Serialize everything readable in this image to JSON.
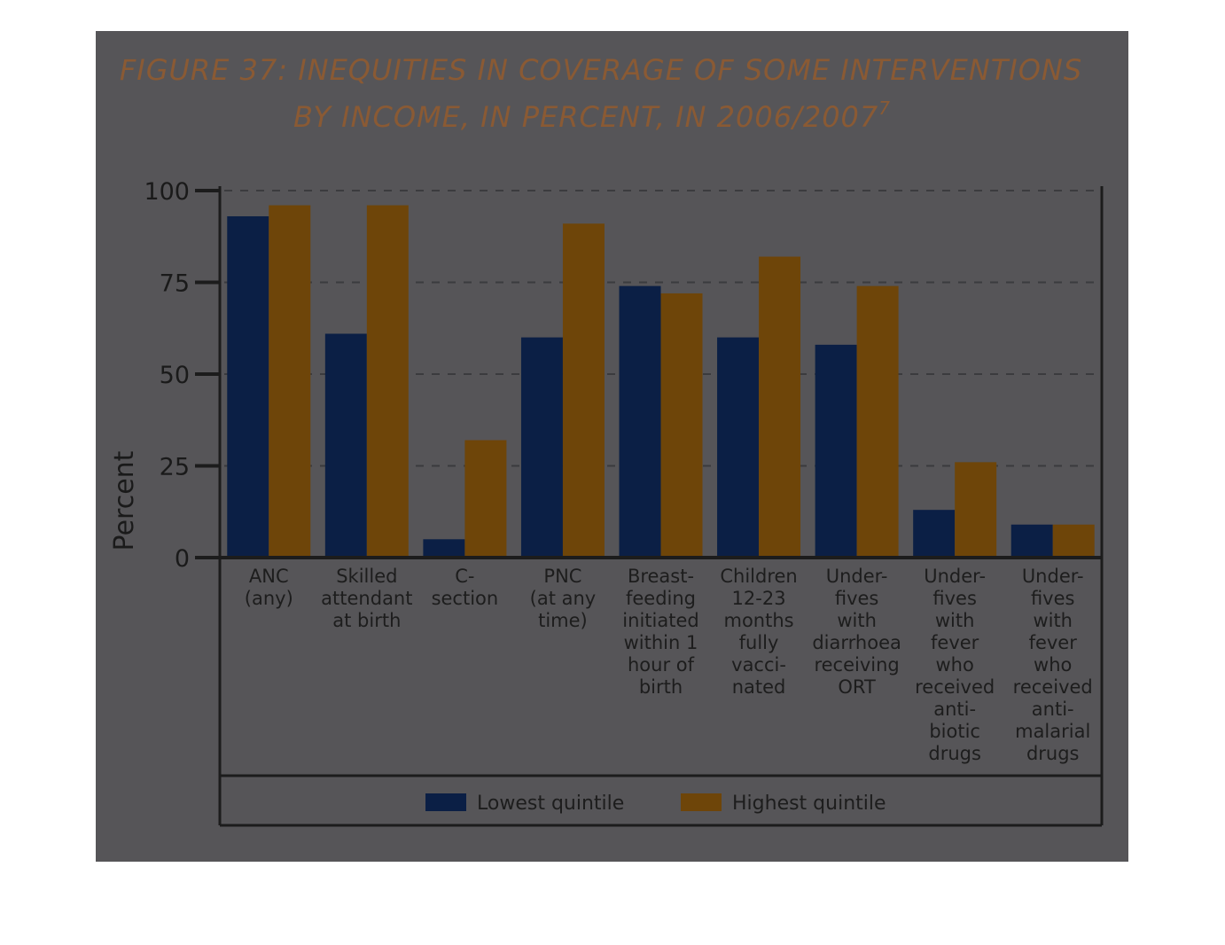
{
  "figure": {
    "title_line1": "FIGURE 37: INEQUITIES IN COVERAGE OF SOME INTERVENTIONS",
    "title_line2": "BY INCOME, IN PERCENT, IN 2006/2007",
    "title_superscript": "7"
  },
  "colors": {
    "lowest": "#0b1f45",
    "highest": "#6e4509",
    "panel": "#565558",
    "axis": "#1c1c1c",
    "title": "#8a5a34"
  },
  "chart_data": {
    "type": "bar",
    "ylabel": "Percent",
    "ylim": [
      0,
      100
    ],
    "yticks": [
      "0",
      "25",
      "50",
      "75",
      "100"
    ],
    "grid": true,
    "legend_position": "bottom",
    "categories": [
      [
        "ANC",
        "(any)"
      ],
      [
        "Skilled",
        "attendant",
        "at birth"
      ],
      [
        "C-",
        "section"
      ],
      [
        "PNC",
        "(at any",
        "time)"
      ],
      [
        "Breast-",
        "feeding",
        "initiated",
        "within 1",
        "hour of",
        "birth"
      ],
      [
        "Children",
        "12-23",
        "months",
        "fully",
        "vacci-",
        "nated"
      ],
      [
        "Under-",
        "fives",
        "with",
        "diarrhoea",
        "receiving",
        "ORT"
      ],
      [
        "Under-",
        "fives",
        "with",
        "fever",
        "who",
        "received",
        "anti-",
        "biotic",
        "drugs"
      ],
      [
        "Under-",
        "fives",
        "with",
        "fever",
        "who",
        "received",
        "anti-",
        "malarial",
        "drugs"
      ]
    ],
    "series": [
      {
        "name": "Lowest quintile",
        "values": [
          93,
          61,
          5,
          60,
          74,
          60,
          58,
          13,
          9
        ]
      },
      {
        "name": "Highest quintile",
        "values": [
          96,
          96,
          32,
          91,
          72,
          82,
          74,
          26,
          9
        ]
      }
    ]
  }
}
